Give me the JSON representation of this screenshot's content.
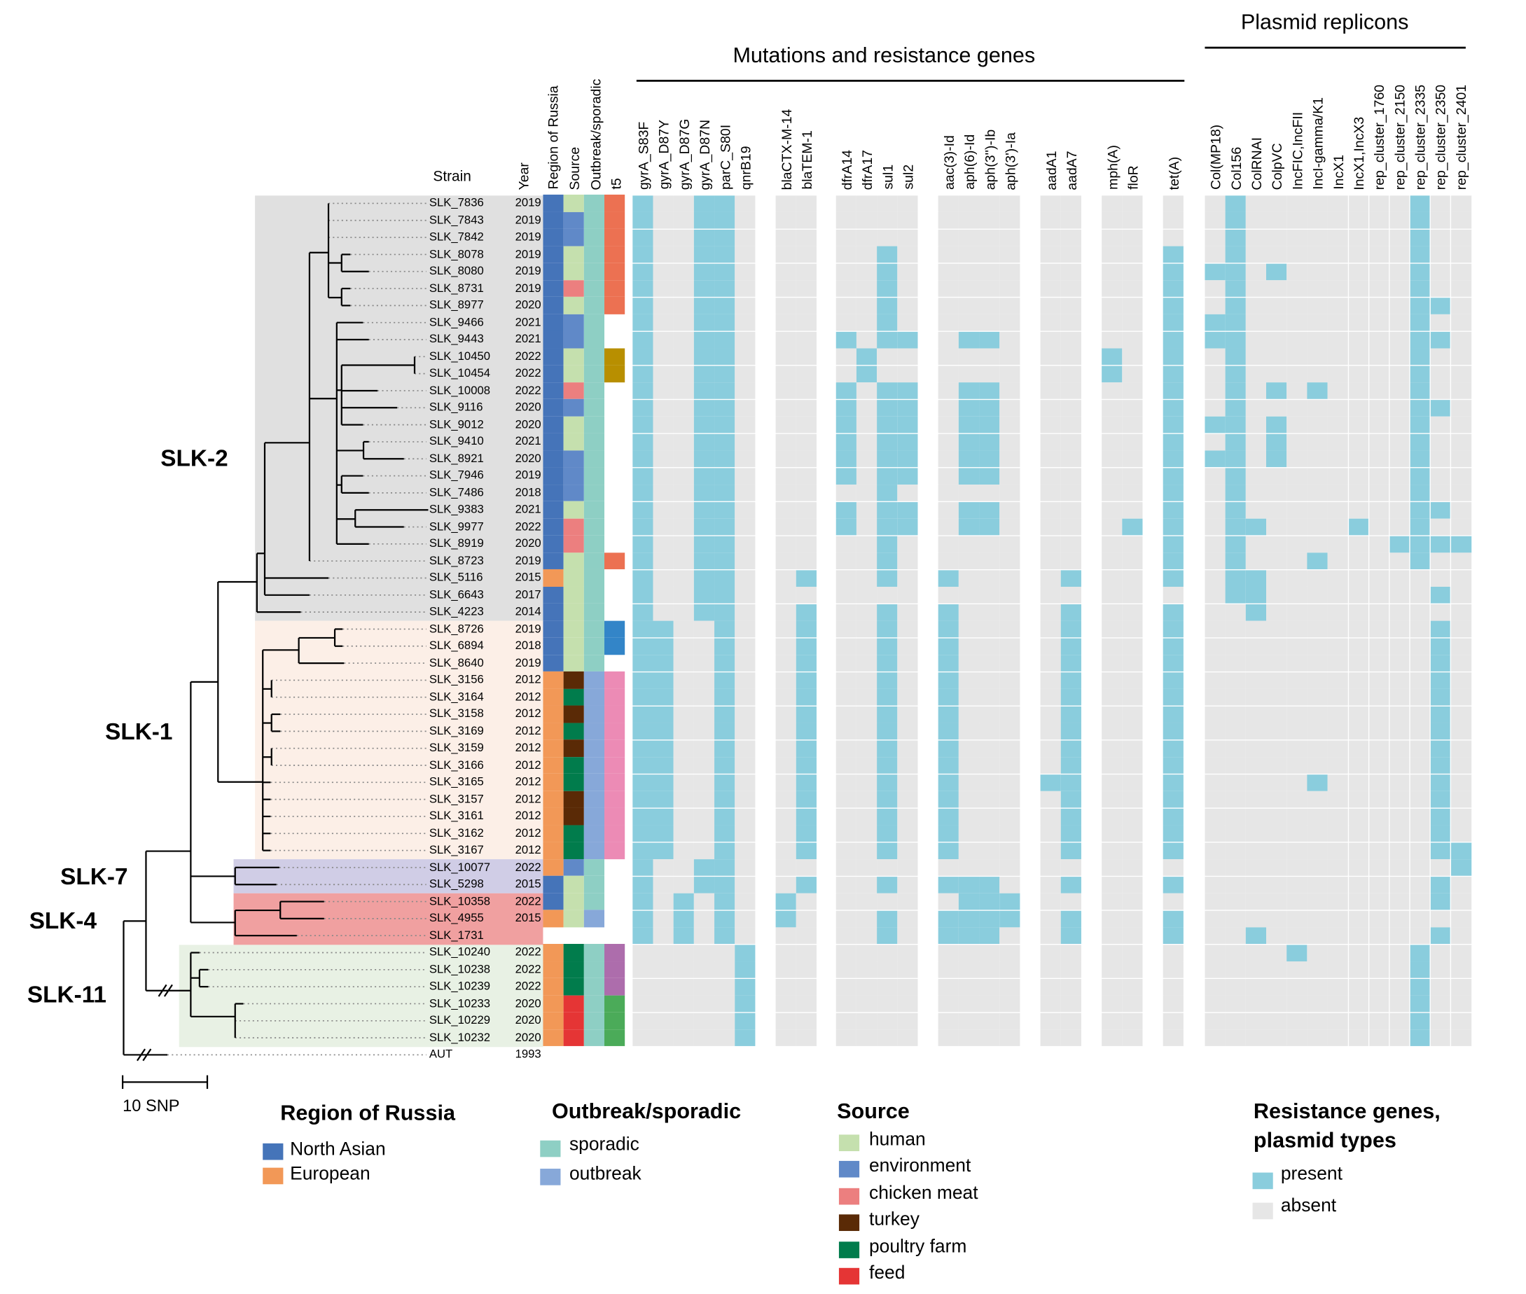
{
  "headers": {
    "strain": "Strain",
    "meta": [
      "Year",
      "Region of Russia",
      "Source",
      "Outbreak/sporadic",
      "t5"
    ],
    "mutations_title": "Mutations and resistance genes",
    "plasmid_title": "Plasmid replicons",
    "resistance_columns": [
      [
        "gyrA_S83F",
        "gyrA_D87Y",
        "gyrA_D87G",
        "gyrA_D87N",
        "parC_S80I",
        "qnrB19"
      ],
      [
        "blaCTX-M-14",
        "blaTEM-1"
      ],
      [
        "dfrA14",
        "dfrA17",
        "sul1",
        "sul2"
      ],
      [
        "aac(3)-Id",
        "aph(6)-Id",
        "aph(3'')-Ib",
        "aph(3')-Ia"
      ],
      [
        "aadA1",
        "aadA7"
      ],
      [
        "mph(A)",
        "floR"
      ],
      [
        "tet(A)"
      ]
    ],
    "plasmid_columns": [
      "Col(MP18)",
      "Col156",
      "ColRNAI",
      "ColpVC",
      "IncFIC,IncFII",
      "IncI-gamma/K1",
      "IncX1",
      "IncX1,IncX3",
      "rep_cluster_1760",
      "rep_cluster_2150",
      "rep_cluster_2335",
      "rep_cluster_2350",
      "rep_cluster_2401"
    ]
  },
  "clades": [
    "SLK-2",
    "SLK-1",
    "SLK-7",
    "SLK-4",
    "SLK-11"
  ],
  "scale_bar": "10 SNP",
  "colors": {
    "region": {
      "North Asian": "#4574b9",
      "European": "#f29857"
    },
    "source": {
      "human": "#c5e0ae",
      "environment": "#6089c8",
      "chicken meat": "#ec7f7f",
      "turkey": "#5a2a06",
      "poultry farm": "#017c4c",
      "feed": "#e53535"
    },
    "outbreak": {
      "sporadic": "#8ecfc4",
      "outbreak": "#87a8d9"
    },
    "present": "#8acddd",
    "absent": "#e6e6e6",
    "clade_bg": {
      "SLK-2": "#e0e0e0",
      "SLK-1": "#fcefe7",
      "SLK-7": "#d0cde6",
      "SLK-4": "#f0a0a0",
      "SLK-11": "#e8f1e4"
    }
  },
  "rows": [
    {
      "strain": "SLK_7836",
      "year": "2019",
      "region": "North Asian",
      "source": "human",
      "outbreak": "sporadic",
      "t5": "#ec7152",
      "res": "100110 00 0000 0000 00 00 0",
      "pl": "0100000000100"
    },
    {
      "strain": "SLK_7843",
      "year": "2019",
      "region": "North Asian",
      "source": "environment",
      "outbreak": "sporadic",
      "t5": "#ec7152",
      "res": "100110 00 0000 0000 00 00 0",
      "pl": "0100000000100"
    },
    {
      "strain": "SLK_7842",
      "year": "2019",
      "region": "North Asian",
      "source": "environment",
      "outbreak": "sporadic",
      "t5": "#ec7152",
      "res": "100110 00 0000 0000 00 00 0",
      "pl": "0100000000100"
    },
    {
      "strain": "SLK_8078",
      "year": "2019",
      "region": "North Asian",
      "source": "human",
      "outbreak": "sporadic",
      "t5": "#ec7152",
      "res": "100110 00 0010 0000 00 00 1",
      "pl": "0100000000100"
    },
    {
      "strain": "SLK_8080",
      "year": "2019",
      "region": "North Asian",
      "source": "human",
      "outbreak": "sporadic",
      "t5": "#ec7152",
      "res": "100110 00 0010 0000 00 00 1",
      "pl": "1101000000100"
    },
    {
      "strain": "SLK_8731",
      "year": "2019",
      "region": "North Asian",
      "source": "chicken meat",
      "outbreak": "sporadic",
      "t5": "#ec7152",
      "res": "100110 00 0010 0000 00 00 1",
      "pl": "0100000000100"
    },
    {
      "strain": "SLK_8977",
      "year": "2020",
      "region": "North Asian",
      "source": "human",
      "outbreak": "sporadic",
      "t5": "#ec7152",
      "res": "100110 00 0010 0000 00 00 1",
      "pl": "0100000000110"
    },
    {
      "strain": "SLK_9466",
      "year": "2021",
      "region": "North Asian",
      "source": "environment",
      "outbreak": "sporadic",
      "t5": null,
      "res": "100110 00 0010 0000 00 00 1",
      "pl": "1100000000100"
    },
    {
      "strain": "SLK_9443",
      "year": "2021",
      "region": "North Asian",
      "source": "environment",
      "outbreak": "sporadic",
      "t5": null,
      "res": "100110 00 1011 0110 00 00 1",
      "pl": "1100000000110"
    },
    {
      "strain": "SLK_10450",
      "year": "2022",
      "region": "North Asian",
      "source": "human",
      "outbreak": "sporadic",
      "t5": "#b88f00",
      "res": "100110 00 0100 0000 00 10 1",
      "pl": "0100000000100"
    },
    {
      "strain": "SLK_10454",
      "year": "2022",
      "region": "North Asian",
      "source": "human",
      "outbreak": "sporadic",
      "t5": "#b88f00",
      "res": "100110 00 0100 0000 00 10 1",
      "pl": "0100000000100"
    },
    {
      "strain": "SLK_10008",
      "year": "2022",
      "region": "North Asian",
      "source": "chicken meat",
      "outbreak": "sporadic",
      "t5": null,
      "res": "100110 00 1011 0110 00 00 1",
      "pl": "0101010000100"
    },
    {
      "strain": "SLK_9116",
      "year": "2020",
      "region": "North Asian",
      "source": "environment",
      "outbreak": "sporadic",
      "t5": null,
      "res": "100110 00 1011 0110 00 00 1",
      "pl": "0100000000110"
    },
    {
      "strain": "SLK_9012",
      "year": "2020",
      "region": "North Asian",
      "source": "human",
      "outbreak": "sporadic",
      "t5": null,
      "res": "100110 00 1011 0110 00 00 1",
      "pl": "1101000000100"
    },
    {
      "strain": "SLK_9410",
      "year": "2021",
      "region": "North Asian",
      "source": "human",
      "outbreak": "sporadic",
      "t5": null,
      "res": "100110 00 1011 0110 00 00 1",
      "pl": "0101000000100"
    },
    {
      "strain": "SLK_8921",
      "year": "2020",
      "region": "North Asian",
      "source": "environment",
      "outbreak": "sporadic",
      "t5": null,
      "res": "100110 00 1011 0110 00 00 1",
      "pl": "1101000000100"
    },
    {
      "strain": "SLK_7946",
      "year": "2019",
      "region": "North Asian",
      "source": "environment",
      "outbreak": "sporadic",
      "t5": null,
      "res": "100110 00 1011 0110 00 00 1",
      "pl": "0100000000100"
    },
    {
      "strain": "SLK_7486",
      "year": "2018",
      "region": "North Asian",
      "source": "environment",
      "outbreak": "sporadic",
      "t5": null,
      "res": "100110 00 0010 0000 00 00 1",
      "pl": "0100000000100"
    },
    {
      "strain": "SLK_9383",
      "year": "2021",
      "region": "North Asian",
      "source": "human",
      "outbreak": "sporadic",
      "t5": null,
      "res": "100110 00 1011 0110 00 00 1",
      "pl": "0100000000110"
    },
    {
      "strain": "SLK_9977",
      "year": "2022",
      "region": "North Asian",
      "source": "chicken meat",
      "outbreak": "sporadic",
      "t5": null,
      "res": "100110 00 1011 0110 00 01 1",
      "pl": "0110000100100"
    },
    {
      "strain": "SLK_8919",
      "year": "2020",
      "region": "North Asian",
      "source": "chicken meat",
      "outbreak": "sporadic",
      "t5": null,
      "res": "100110 00 0010 0000 00 00 1",
      "pl": "0100000001111"
    },
    {
      "strain": "SLK_8723",
      "year": "2019",
      "region": "North Asian",
      "source": "human",
      "outbreak": "sporadic",
      "t5": "#ec7152",
      "res": "100110 00 0010 0000 00 00 1",
      "pl": "0100010000100"
    },
    {
      "strain": "SLK_5116",
      "year": "2015",
      "region": "European",
      "source": "human",
      "outbreak": "sporadic",
      "t5": null,
      "res": "100110 01 0010 1000 01 00 1",
      "pl": "0110000000000"
    },
    {
      "strain": "SLK_6643",
      "year": "2017",
      "region": "North Asian",
      "source": "human",
      "outbreak": "sporadic",
      "t5": null,
      "res": "100110 00 0000 0000 00 00 0",
      "pl": "0110000000010"
    },
    {
      "strain": "SLK_4223",
      "year": "2014",
      "region": "North Asian",
      "source": "human",
      "outbreak": "sporadic",
      "t5": null,
      "res": "100110 01 0010 1000 01 00 1",
      "pl": "0010000000000"
    },
    {
      "strain": "SLK_8726",
      "year": "2019",
      "region": "North Asian",
      "source": "human",
      "outbreak": "sporadic",
      "t5": "#3385c8",
      "res": "110010 01 0010 1000 01 00 1",
      "pl": "0000000000010"
    },
    {
      "strain": "SLK_6894",
      "year": "2018",
      "region": "North Asian",
      "source": "human",
      "outbreak": "sporadic",
      "t5": "#3385c8",
      "res": "110010 01 0010 1000 01 00 1",
      "pl": "0000000000010"
    },
    {
      "strain": "SLK_8640",
      "year": "2019",
      "region": "North Asian",
      "source": "human",
      "outbreak": "sporadic",
      "t5": null,
      "res": "110010 01 0010 1000 01 00 1",
      "pl": "0000000000010"
    },
    {
      "strain": "SLK_3156",
      "year": "2012",
      "region": "European",
      "source": "turkey",
      "outbreak": "outbreak",
      "t5": "#ec8bb5",
      "res": "110010 01 0010 1000 01 00 1",
      "pl": "0000000000010"
    },
    {
      "strain": "SLK_3164",
      "year": "2012",
      "region": "European",
      "source": "poultry farm",
      "outbreak": "outbreak",
      "t5": "#ec8bb5",
      "res": "110010 01 0010 1000 01 00 1",
      "pl": "0000000000010"
    },
    {
      "strain": "SLK_3158",
      "year": "2012",
      "region": "European",
      "source": "turkey",
      "outbreak": "outbreak",
      "t5": "#ec8bb5",
      "res": "110010 01 0010 1000 01 00 1",
      "pl": "0000000000010"
    },
    {
      "strain": "SLK_3169",
      "year": "2012",
      "region": "European",
      "source": "poultry farm",
      "outbreak": "outbreak",
      "t5": "#ec8bb5",
      "res": "110010 01 0010 1000 01 00 1",
      "pl": "0000000000010"
    },
    {
      "strain": "SLK_3159",
      "year": "2012",
      "region": "European",
      "source": "turkey",
      "outbreak": "outbreak",
      "t5": "#ec8bb5",
      "res": "110010 01 0010 1000 01 00 1",
      "pl": "0000000000010"
    },
    {
      "strain": "SLK_3166",
      "year": "2012",
      "region": "European",
      "source": "poultry farm",
      "outbreak": "outbreak",
      "t5": "#ec8bb5",
      "res": "110010 01 0010 1000 01 00 1",
      "pl": "0000000000010"
    },
    {
      "strain": "SLK_3165",
      "year": "2012",
      "region": "European",
      "source": "poultry farm",
      "outbreak": "outbreak",
      "t5": "#ec8bb5",
      "res": "110010 01 0010 1000 11 00 1",
      "pl": "0000010000010"
    },
    {
      "strain": "SLK_3157",
      "year": "2012",
      "region": "European",
      "source": "turkey",
      "outbreak": "outbreak",
      "t5": "#ec8bb5",
      "res": "110010 01 0010 1000 01 00 1",
      "pl": "0000000000010"
    },
    {
      "strain": "SLK_3161",
      "year": "2012",
      "region": "European",
      "source": "turkey",
      "outbreak": "outbreak",
      "t5": "#ec8bb5",
      "res": "110010 01 0010 1000 01 00 1",
      "pl": "0000000000010"
    },
    {
      "strain": "SLK_3162",
      "year": "2012",
      "region": "European",
      "source": "poultry farm",
      "outbreak": "outbreak",
      "t5": "#ec8bb5",
      "res": "110010 01 0010 1000 01 00 1",
      "pl": "0000000000010"
    },
    {
      "strain": "SLK_3167",
      "year": "2012",
      "region": "European",
      "source": "poultry farm",
      "outbreak": "outbreak",
      "t5": "#ec8bb5",
      "res": "110010 01 0010 1000 01 00 1",
      "pl": "0000000000011"
    },
    {
      "strain": "SLK_10077",
      "year": "2022",
      "region": "European",
      "source": "environment",
      "outbreak": "sporadic",
      "t5": null,
      "res": "100110 00 0000 0000 00 00 0",
      "pl": "0000000000001"
    },
    {
      "strain": "SLK_5298",
      "year": "2015",
      "region": "North Asian",
      "source": "human",
      "outbreak": "sporadic",
      "t5": null,
      "res": "100110 01 0010 1110 01 00 1",
      "pl": "0000000000010"
    },
    {
      "strain": "SLK_10358",
      "year": "2022",
      "region": "North Asian",
      "source": "human",
      "outbreak": "sporadic",
      "t5": null,
      "res": "101010 10 0000 0111 00 00 0",
      "pl": "0000000000010"
    },
    {
      "strain": "SLK_4955",
      "year": "2015",
      "region": "European",
      "source": "human",
      "outbreak": "outbreak",
      "t5": null,
      "res": "101010 10 0010 1111 01 00 1",
      "pl": "0000000000000"
    },
    {
      "strain": "SLK_1731",
      "year": null,
      "region": null,
      "source": null,
      "outbreak": null,
      "t5": null,
      "res": "101010 00 0010 1110 01 00 1",
      "pl": "0010000000010"
    },
    {
      "strain": "SLK_10240",
      "year": "2022",
      "region": "European",
      "source": "poultry farm",
      "outbreak": "sporadic",
      "t5": "#ad6dac",
      "res": "000001 00 0000 0000 00 00 0",
      "pl": "0000100000100"
    },
    {
      "strain": "SLK_10238",
      "year": "2022",
      "region": "European",
      "source": "poultry farm",
      "outbreak": "sporadic",
      "t5": "#ad6dac",
      "res": "000001 00 0000 0000 00 00 0",
      "pl": "0000000000100"
    },
    {
      "strain": "SLK_10239",
      "year": "2022",
      "region": "European",
      "source": "poultry farm",
      "outbreak": "sporadic",
      "t5": "#ad6dac",
      "res": "000001 00 0000 0000 00 00 0",
      "pl": "0000000000100"
    },
    {
      "strain": "SLK_10233",
      "year": "2020",
      "region": "European",
      "source": "feed",
      "outbreak": "sporadic",
      "t5": "#4bab59",
      "res": "000001 00 0000 0000 00 00 0",
      "pl": "0000000000100"
    },
    {
      "strain": "SLK_10229",
      "year": "2020",
      "region": "European",
      "source": "feed",
      "outbreak": "sporadic",
      "t5": "#4bab59",
      "res": "000001 00 0000 0000 00 00 0",
      "pl": "0000000000100"
    },
    {
      "strain": "SLK_10232",
      "year": "2020",
      "region": "European",
      "source": "feed",
      "outbreak": "sporadic",
      "t5": "#4bab59",
      "res": "000001 00 0000 0000 00 00 0",
      "pl": "0000000000100"
    },
    {
      "strain": "AUT",
      "year": "1993",
      "region": null,
      "source": null,
      "outbreak": null,
      "t5": null,
      "res": null,
      "pl": null
    }
  ],
  "legends": {
    "region": {
      "title": "Region of Russia",
      "items": [
        "North Asian",
        "European"
      ]
    },
    "outbreak": {
      "title": "Outbreak/sporadic",
      "items": [
        "sporadic",
        "outbreak"
      ]
    },
    "source": {
      "title": "Source",
      "items": [
        "human",
        "environment",
        "chicken meat",
        "turkey",
        "poultry farm",
        "feed"
      ]
    },
    "presence": {
      "title_line1": "Resistance genes,",
      "title_line2": "plasmid types",
      "items": [
        "present",
        "absent"
      ]
    }
  }
}
